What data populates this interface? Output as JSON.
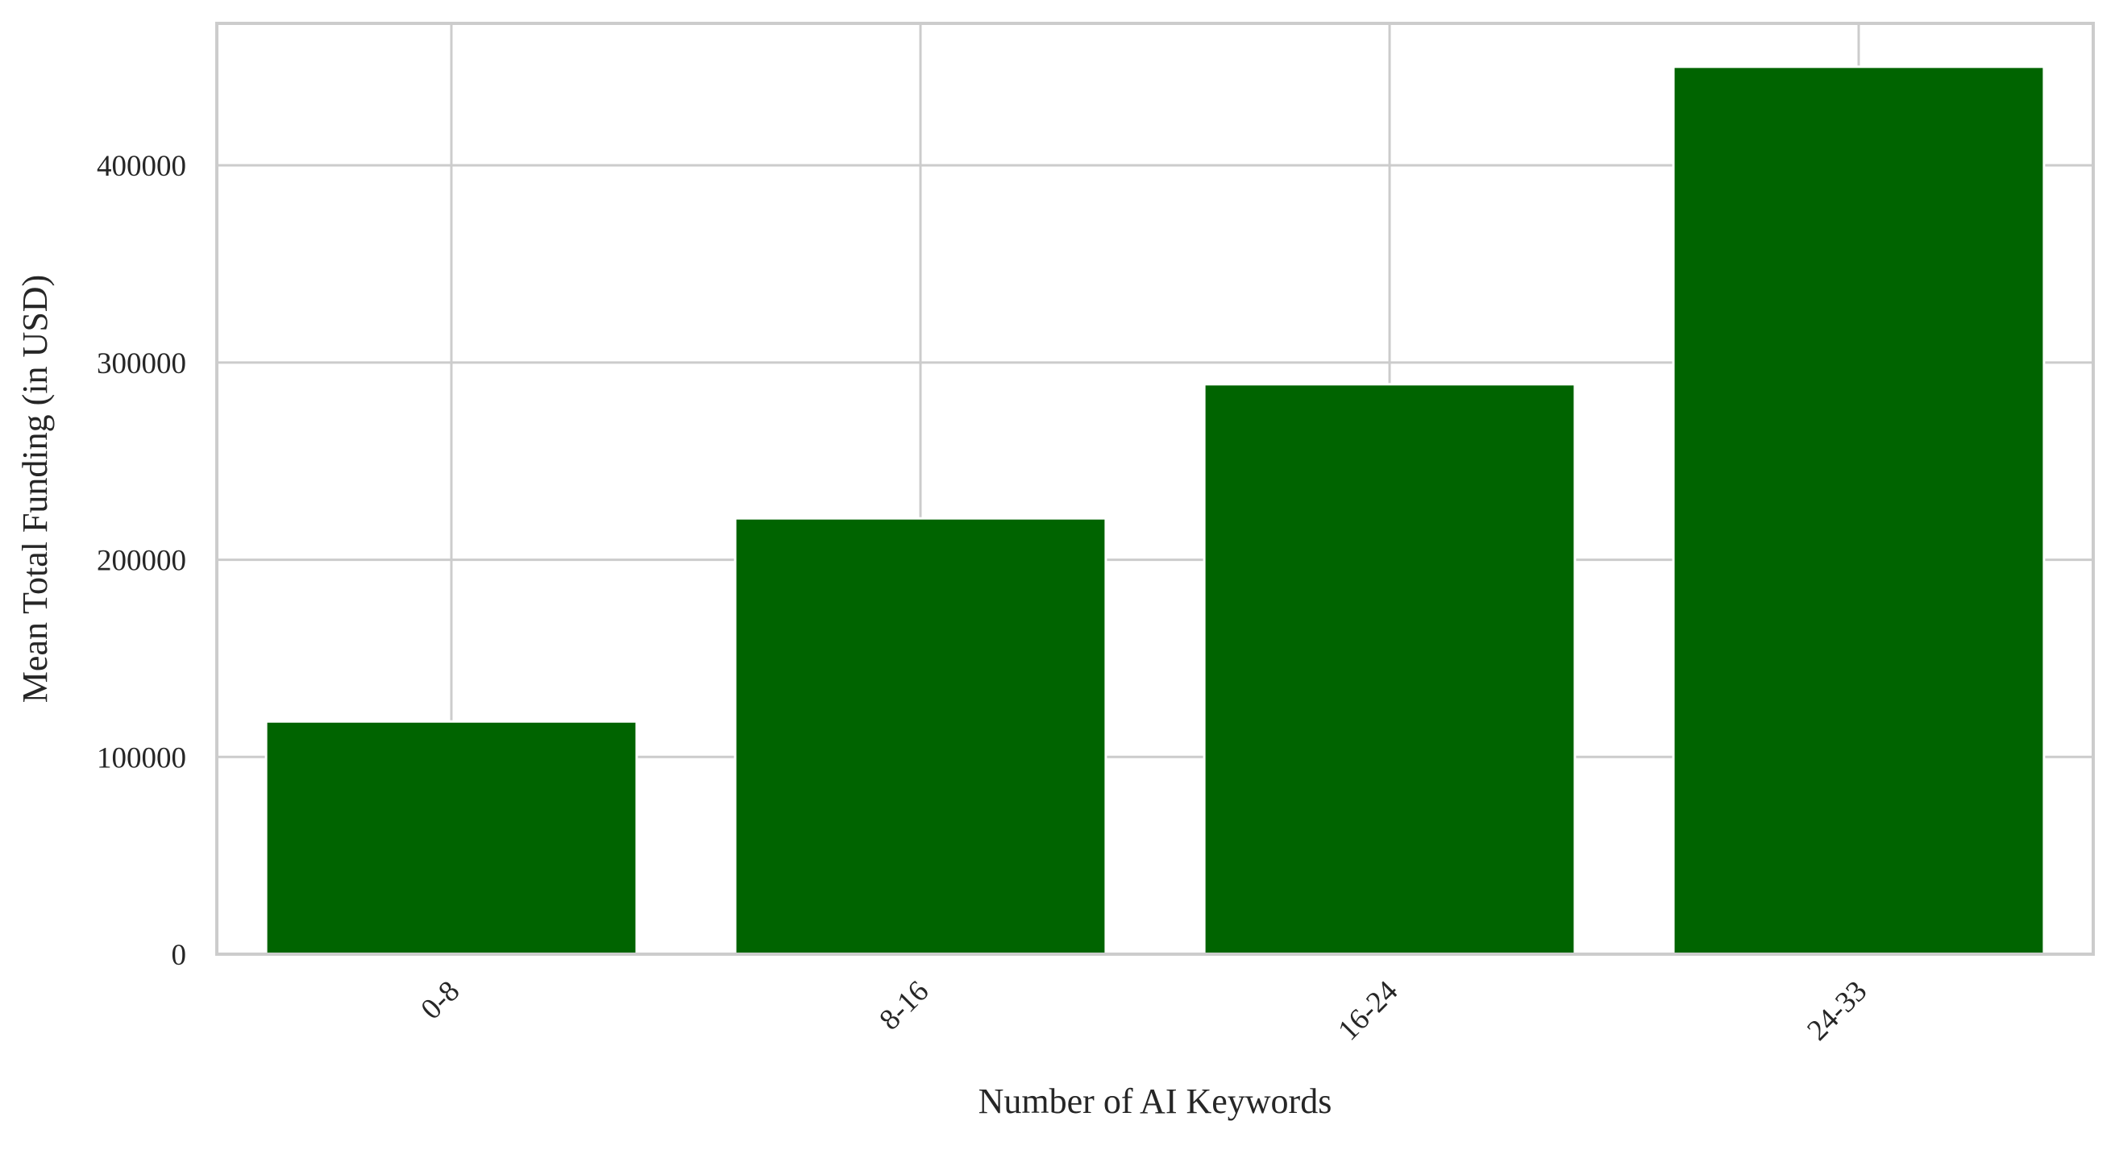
{
  "chart_data": {
    "type": "bar",
    "title": "",
    "xlabel": "Number of AI Keywords",
    "ylabel": "Mean Total Funding (in USD)",
    "categories": [
      "0-8",
      "8-16",
      "16-24",
      "24-33"
    ],
    "values": [
      118000,
      221000,
      289000,
      450000
    ],
    "ylim": [
      0,
      472000
    ],
    "yticks": [
      0,
      100000,
      200000,
      300000,
      400000
    ],
    "ytick_labels": [
      "0",
      "100000",
      "200000",
      "300000",
      "400000"
    ],
    "bar_color": "#006400",
    "grid": true,
    "grid_color": "#cccccc",
    "frame_color": "#cccccc",
    "xtick_rotation": "45"
  }
}
